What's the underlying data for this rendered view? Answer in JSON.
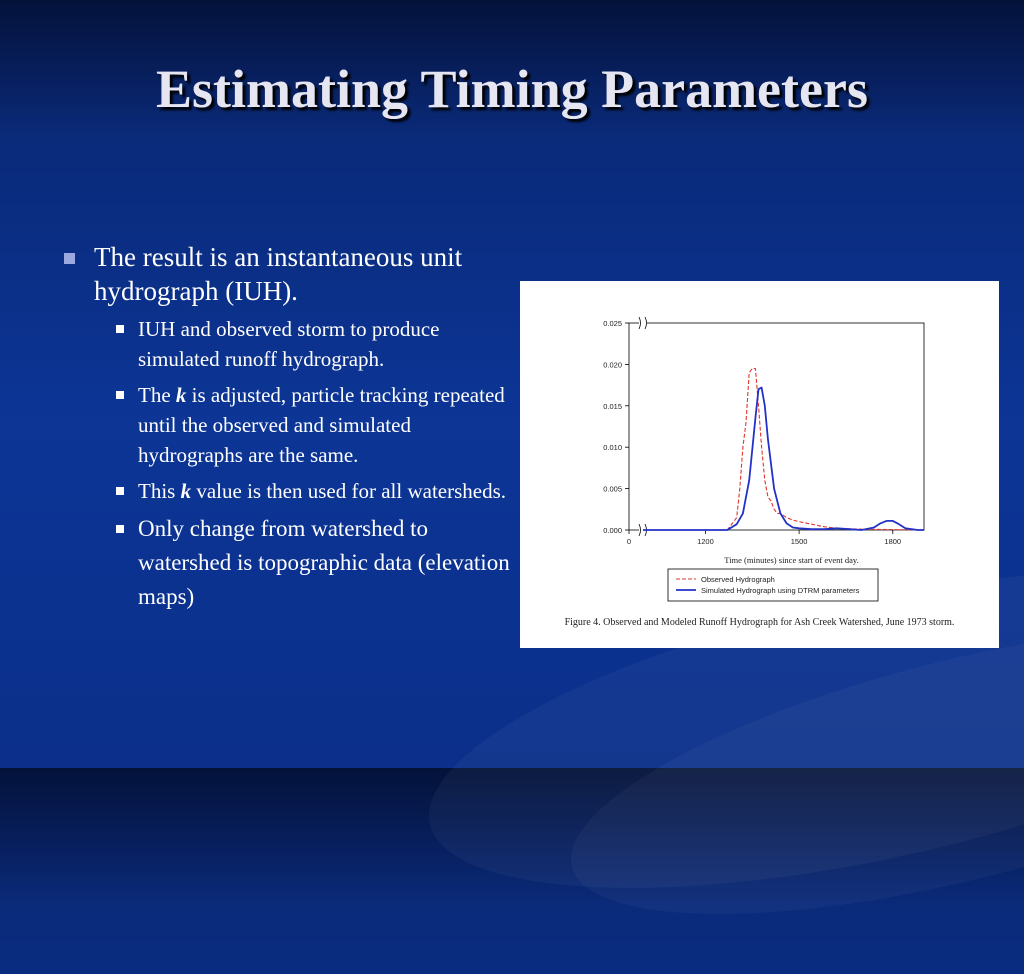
{
  "slide": {
    "title": "Estimating Timing Parameters",
    "bullet_main": "The result is an instantaneous unit hydrograph (IUH).",
    "sub1": "IUH and observed storm to produce simulated runoff hydrograph.",
    "sub2_pre": "The ",
    "sub2_k": "k",
    "sub2_post": " is adjusted, particle tracking repeated until the observed and simulated hydrographs are the same.",
    "sub3_pre": "This ",
    "sub3_k": "k",
    "sub3_post": " value is then used for all watersheds.",
    "sub4": "Only change from watershed to watershed is topographic data (elevation maps)",
    "bullet_color": "#9aa9e0"
  },
  "figure": {
    "caption": "Figure 4. Observed and Modeled Runoff Hydrograph for Ash Creek Watershed, June 1973 storm."
  },
  "chart_data": {
    "type": "line",
    "title": "",
    "xlabel": "Time (minutes) since start of event day.",
    "ylabel": "",
    "x_ticks": [
      "0",
      "1200",
      "1500",
      "1800"
    ],
    "y_ticks": [
      "0.000",
      "0.005",
      "0.010",
      "0.015",
      "0.020",
      "0.025"
    ],
    "ylim": [
      0,
      0.025
    ],
    "x_axis_break": true,
    "legend_position": "bottom-center",
    "series": [
      {
        "name": "Observed Hydrograph",
        "style": "dashed",
        "color": "#e0362c",
        "x": [
          1000,
          1270,
          1300,
          1310,
          1320,
          1330,
          1340,
          1350,
          1360,
          1370,
          1380,
          1390,
          1400,
          1410,
          1420,
          1430,
          1440,
          1460,
          1480,
          1500,
          1540,
          1580,
          1620,
          1700,
          1900
        ],
        "y": [
          0.0,
          0.0,
          0.0015,
          0.005,
          0.01,
          0.013,
          0.019,
          0.0195,
          0.0195,
          0.015,
          0.01,
          0.006,
          0.004,
          0.0035,
          0.0025,
          0.002,
          0.002,
          0.0015,
          0.0012,
          0.001,
          0.0007,
          0.0004,
          0.0002,
          0.0001,
          0.0
        ]
      },
      {
        "name": "Simulated Hydrograph using DTRM parameters",
        "style": "solid",
        "color": "#2231c8",
        "x": [
          1000,
          1270,
          1300,
          1320,
          1340,
          1360,
          1370,
          1380,
          1390,
          1400,
          1420,
          1440,
          1460,
          1480,
          1500,
          1540,
          1580,
          1620,
          1660,
          1700,
          1740,
          1760,
          1780,
          1800,
          1820,
          1840,
          1880,
          1900
        ],
        "y": [
          0.0,
          0.0,
          0.0007,
          0.002,
          0.006,
          0.0135,
          0.017,
          0.0172,
          0.015,
          0.011,
          0.005,
          0.002,
          0.0008,
          0.0003,
          0.0002,
          0.0001,
          0.0001,
          0.0002,
          0.0001,
          0.0,
          0.0003,
          0.0008,
          0.0011,
          0.0011,
          0.0007,
          0.0002,
          0.0,
          0.0
        ]
      }
    ]
  }
}
